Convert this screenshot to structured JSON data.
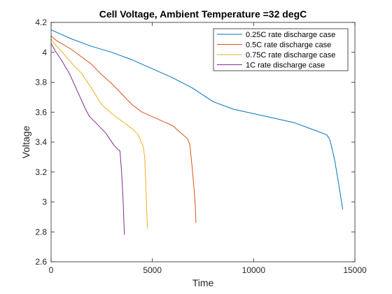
{
  "chart_data": {
    "type": "line",
    "title": "Cell Voltage, Ambient Temperature =32 degC",
    "xlabel": "Time",
    "ylabel": "Voltage",
    "xlim": [
      0,
      15000
    ],
    "ylim": [
      2.6,
      4.2
    ],
    "x_ticks": [
      0,
      5000,
      10000,
      15000
    ],
    "x_tick_labels": [
      "0",
      "5000",
      "10000",
      "15000"
    ],
    "y_ticks": [
      2.6,
      2.8,
      3.0,
      3.2,
      3.4,
      3.6,
      3.8,
      4.0,
      4.2
    ],
    "y_tick_labels": [
      "2.6",
      "2.8",
      "3",
      "3.2",
      "3.4",
      "3.6",
      "3.8",
      "4",
      "4.2"
    ],
    "grid": false,
    "legend_position": "top-right",
    "series": [
      {
        "name": "0.25C rate discharge case",
        "color": "#0072BD",
        "points": [
          [
            0,
            4.15
          ],
          [
            500,
            4.12
          ],
          [
            1000,
            4.09
          ],
          [
            2000,
            4.04
          ],
          [
            3000,
            4.0
          ],
          [
            4000,
            3.95
          ],
          [
            5000,
            3.89
          ],
          [
            6000,
            3.83
          ],
          [
            7000,
            3.76
          ],
          [
            8000,
            3.67
          ],
          [
            9000,
            3.62
          ],
          [
            10000,
            3.59
          ],
          [
            11000,
            3.56
          ],
          [
            12000,
            3.53
          ],
          [
            13000,
            3.48
          ],
          [
            13600,
            3.45
          ],
          [
            13750,
            3.42
          ],
          [
            13850,
            3.37
          ],
          [
            14000,
            3.28
          ],
          [
            14200,
            3.12
          ],
          [
            14400,
            2.95
          ]
        ]
      },
      {
        "name": "0.5C rate discharge case",
        "color": "#D95319",
        "points": [
          [
            0,
            4.11
          ],
          [
            250,
            4.08
          ],
          [
            500,
            4.06
          ],
          [
            1000,
            4.02
          ],
          [
            2000,
            3.92
          ],
          [
            2500,
            3.85
          ],
          [
            3000,
            3.79
          ],
          [
            3500,
            3.72
          ],
          [
            4000,
            3.65
          ],
          [
            4500,
            3.6
          ],
          [
            5000,
            3.57
          ],
          [
            5500,
            3.54
          ],
          [
            6000,
            3.51
          ],
          [
            6500,
            3.45
          ],
          [
            6750,
            3.42
          ],
          [
            6850,
            3.38
          ],
          [
            6950,
            3.25
          ],
          [
            7050,
            3.1
          ],
          [
            7120,
            2.98
          ],
          [
            7150,
            2.86
          ]
        ]
      },
      {
        "name": "0.75C rate discharge case",
        "color": "#EDB120",
        "points": [
          [
            0,
            4.09
          ],
          [
            200,
            4.05
          ],
          [
            500,
            4.01
          ],
          [
            1000,
            3.93
          ],
          [
            1500,
            3.86
          ],
          [
            2000,
            3.76
          ],
          [
            2500,
            3.65
          ],
          [
            3000,
            3.59
          ],
          [
            3500,
            3.54
          ],
          [
            4000,
            3.49
          ],
          [
            4300,
            3.45
          ],
          [
            4450,
            3.4
          ],
          [
            4550,
            3.37
          ],
          [
            4620,
            3.3
          ],
          [
            4680,
            3.1
          ],
          [
            4720,
            2.95
          ],
          [
            4760,
            2.82
          ]
        ]
      },
      {
        "name": "1C rate discharge case",
        "color": "#7E2F8E",
        "points": [
          [
            0,
            4.06
          ],
          [
            200,
            4.01
          ],
          [
            500,
            3.95
          ],
          [
            900,
            3.86
          ],
          [
            1300,
            3.74
          ],
          [
            1700,
            3.62
          ],
          [
            1900,
            3.57
          ],
          [
            2200,
            3.53
          ],
          [
            2700,
            3.46
          ],
          [
            3100,
            3.38
          ],
          [
            3300,
            3.35
          ],
          [
            3400,
            3.34
          ],
          [
            3480,
            3.2
          ],
          [
            3560,
            3.0
          ],
          [
            3620,
            2.78
          ]
        ]
      }
    ]
  }
}
